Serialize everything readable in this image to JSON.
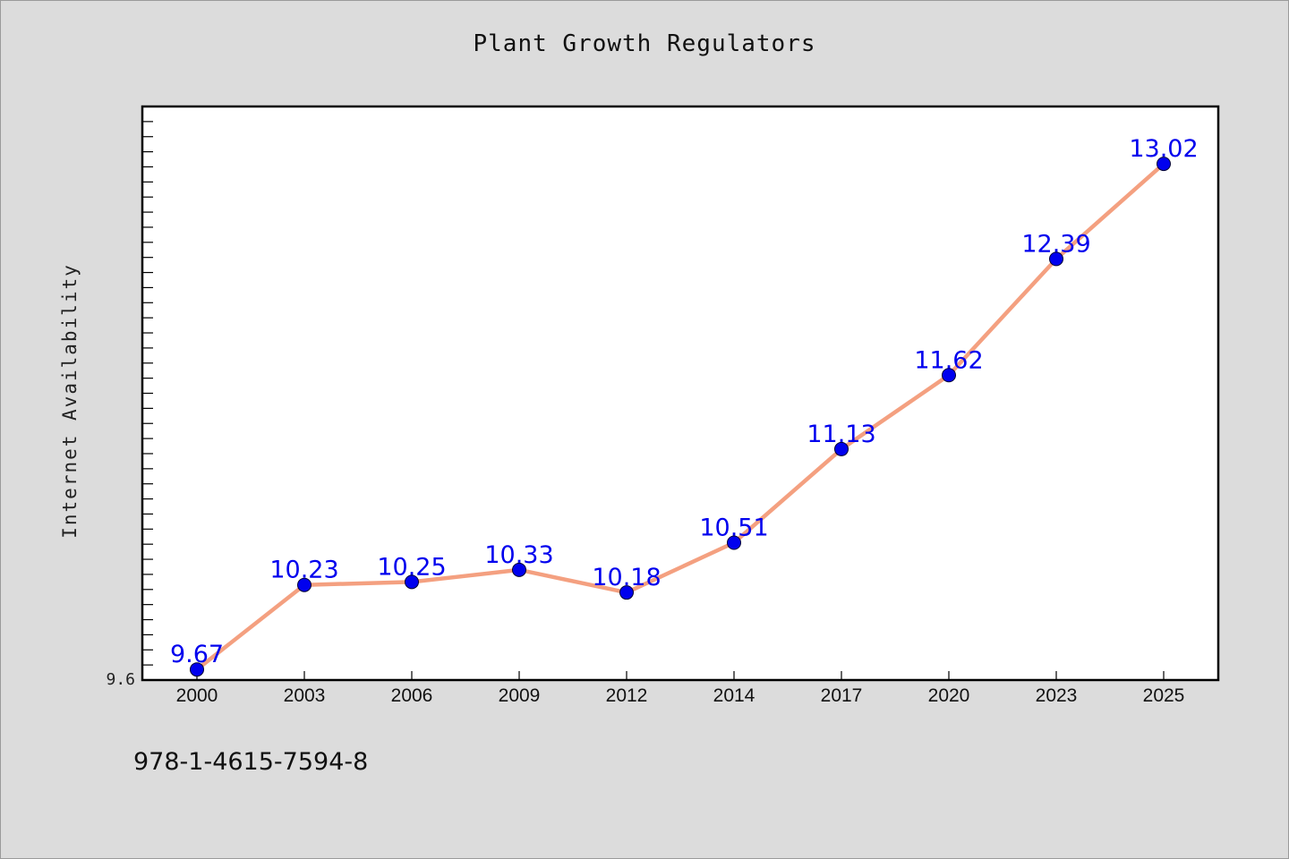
{
  "chart_data": {
    "type": "line",
    "title": "Plant Growth Regulators",
    "xlabel": "",
    "ylabel": "Internet Availability",
    "categories": [
      "2000",
      "2003",
      "2006",
      "2009",
      "2012",
      "2014",
      "2017",
      "2020",
      "2023",
      "2025"
    ],
    "series": [
      {
        "values": [
          9.67,
          10.23,
          10.25,
          10.33,
          10.18,
          10.51,
          11.13,
          11.62,
          12.39,
          13.02
        ],
        "labels": [
          "9.67",
          "10.23",
          "10.25",
          "10.33",
          "10.18",
          "10.51",
          "11.13",
          "11.62",
          "12.39",
          "13.02"
        ],
        "line_color": "#f4a080",
        "marker_color": "#0000ee",
        "label_color": "#0000ee"
      }
    ],
    "ylim": [
      9.6,
      13.4
    ],
    "y_tick_labels": [
      "9.6"
    ],
    "grid": false,
    "legend": "none"
  },
  "footer": {
    "isbn": "978-1-4615-7594-8"
  },
  "colors": {
    "background": "#dcdcdc",
    "plot_background": "#ffffff",
    "axis": "#000000"
  }
}
